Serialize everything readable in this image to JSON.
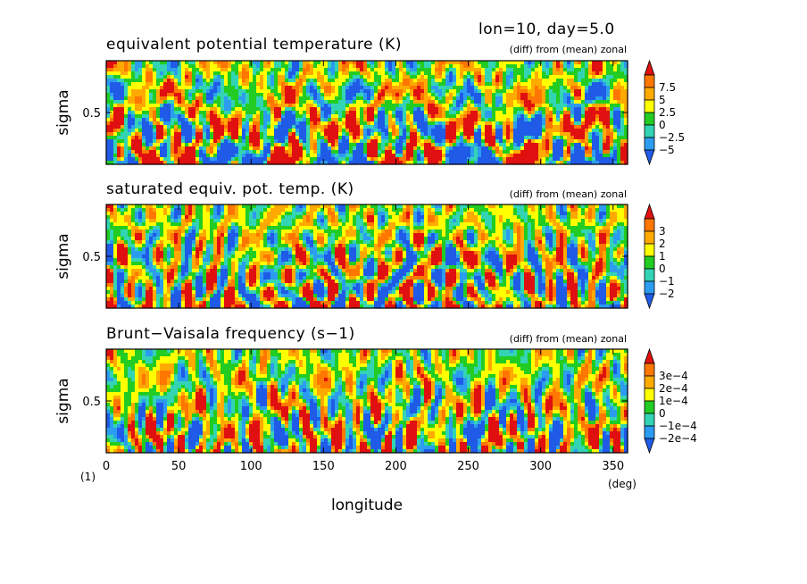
{
  "header": {
    "run_info": "lon=10, day=5.0"
  },
  "colors": {
    "levels": [
      "#1f5be6",
      "#2c9cf0",
      "#33d4b4",
      "#22cc22",
      "#ffff00",
      "#ffaa00",
      "#ff7700",
      "#e01010"
    ]
  },
  "chart_data": [
    {
      "type": "heatmap",
      "title": "equivalent potential temperature (K)",
      "subtitle": "(diff) from (mean) zonal",
      "xlabel": "",
      "ylabel": "sigma",
      "xlim": [
        0,
        360
      ],
      "ylim": [
        0,
        1
      ],
      "yticks": [
        0.5
      ],
      "ytick_labels": [
        "0.5"
      ],
      "colorbar_ticks": [
        "7.5",
        "5",
        "2.5",
        "0",
        "−2.5",
        "−5"
      ],
      "range": [
        -7.5,
        7.5
      ],
      "seed": 11
    },
    {
      "type": "heatmap",
      "title": "saturated equiv. pot. temp. (K)",
      "subtitle": "(diff) from (mean) zonal",
      "xlabel": "",
      "ylabel": "sigma",
      "xlim": [
        0,
        360
      ],
      "ylim": [
        0,
        1
      ],
      "yticks": [
        0.5
      ],
      "ytick_labels": [
        "0.5"
      ],
      "colorbar_ticks": [
        "3",
        "2",
        "1",
        "0",
        "−1",
        "−2"
      ],
      "range": [
        -3,
        3
      ],
      "seed": 23
    },
    {
      "type": "heatmap",
      "title": "Brunt−Vaisala frequency (s−1)",
      "subtitle": "(diff) from (mean) zonal",
      "xlabel": "longitude",
      "ylabel": "sigma",
      "xlim": [
        0,
        360
      ],
      "ylim": [
        0,
        1
      ],
      "xticks": [
        0,
        50,
        100,
        150,
        200,
        250,
        300,
        350
      ],
      "xtick_labels": [
        "0",
        "50",
        "100",
        "150",
        "200",
        "250",
        "300",
        "350"
      ],
      "yticks": [
        0.5
      ],
      "ytick_labels": [
        "0.5"
      ],
      "colorbar_ticks": [
        "3e−4",
        "2e−4",
        "1e−4",
        "0",
        "−1e−4",
        "−2e−4"
      ],
      "range": [
        -0.0003,
        0.0003
      ],
      "seed": 37
    }
  ],
  "footer": {
    "units_left": "(1)",
    "units_right": "(deg)"
  }
}
